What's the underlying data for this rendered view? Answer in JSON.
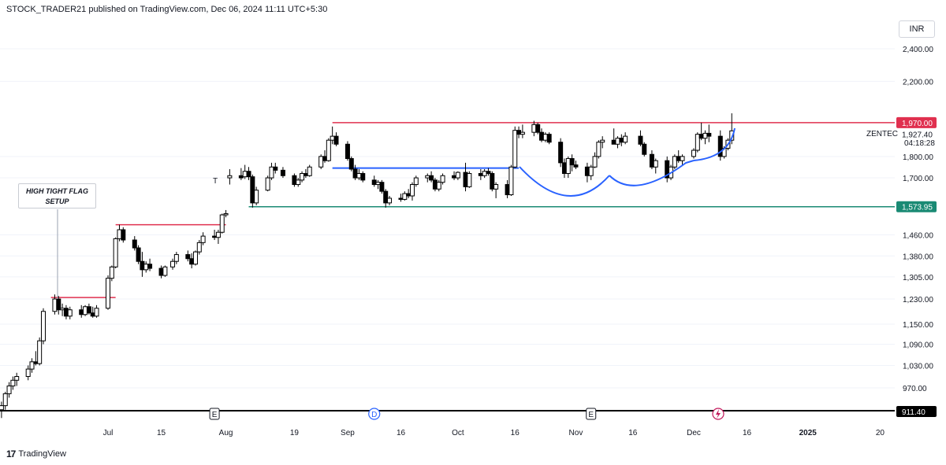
{
  "header": {
    "text": "STOCK_TRADER21 published on TradingView.com, Dec 06, 2024 11:11 UTC+5:30"
  },
  "footer": {
    "logo_text": "TradingView"
  },
  "currency": "INR",
  "annotation": {
    "line1": "HIGH TIGHT FLAG",
    "line2": "SETUP"
  },
  "symbol": "ZENTEC",
  "countdown": "04:18:28",
  "colors": {
    "up": "#ffffff",
    "down": "#000000",
    "red_line": "#e0304f",
    "green_line": "#1a8a74",
    "blue": "#2962ff"
  },
  "chart_data": {
    "type": "candlestick",
    "y_scale": "log",
    "y_ticks": [
      "2,400.00",
      "2,200.00",
      "1,800.00",
      "1,700.00",
      "1,460.00",
      "1,380.00",
      "1,305.00",
      "1,230.00",
      "1,150.00",
      "1,090.00",
      "1,030.00",
      "970.00"
    ],
    "y_tick_values": [
      2400,
      2200,
      1800,
      1700,
      1460,
      1380,
      1305,
      1230,
      1150,
      1090,
      1030,
      970
    ],
    "x_ticks": [
      "Jul",
      "15",
      "Aug",
      "19",
      "Sep",
      "16",
      "Oct",
      "16",
      "Nov",
      "16",
      "Dec",
      "16",
      "2025",
      "20"
    ],
    "price_labels": [
      {
        "name": "resistance",
        "text": "1,970.00",
        "value": 1970
      },
      {
        "name": "last",
        "text": "1,927.40",
        "value": 1927.4
      },
      {
        "name": "support",
        "text": "1,573.95",
        "value": 1573.95
      },
      {
        "name": "low",
        "text": "911.40",
        "value": 911.4
      }
    ],
    "event_markers": [
      "E",
      "D",
      "E"
    ],
    "horizontal_lines": [
      {
        "color": "red",
        "price": 1970,
        "from": "Sep 2",
        "to": "Dec 31"
      },
      {
        "color": "red",
        "price": 1500,
        "from": "Jul 1",
        "to": "Jul 31"
      },
      {
        "color": "red",
        "price": 1235,
        "from": "Jun 21",
        "to": "Jul 2"
      },
      {
        "color": "green",
        "price": 1573.95,
        "from": "Aug 7",
        "to": "Dec 31"
      },
      {
        "color": "blue",
        "price": 1745,
        "from": "Sep 2",
        "to": "Oct 16"
      }
    ],
    "candles": [
      {
        "d": "2024-06-03",
        "o": 915,
        "h": 935,
        "l": 895,
        "c": 925
      },
      {
        "d": "2024-06-04",
        "o": 925,
        "h": 960,
        "l": 915,
        "c": 955
      },
      {
        "d": "2024-06-05",
        "o": 955,
        "h": 985,
        "l": 945,
        "c": 975
      },
      {
        "d": "2024-06-06",
        "o": 975,
        "h": 1000,
        "l": 965,
        "c": 990
      },
      {
        "d": "2024-06-07",
        "o": 990,
        "h": 1010,
        "l": 975,
        "c": 1000
      },
      {
        "d": "2024-06-10",
        "o": 1000,
        "h": 1030,
        "l": 990,
        "c": 1020
      },
      {
        "d": "2024-06-11",
        "o": 1020,
        "h": 1050,
        "l": 1010,
        "c": 1040
      },
      {
        "d": "2024-06-12",
        "o": 1040,
        "h": 1070,
        "l": 1030,
        "c": 1035
      },
      {
        "d": "2024-06-13",
        "o": 1035,
        "h": 1110,
        "l": 1030,
        "c": 1100
      },
      {
        "d": "2024-06-14",
        "o": 1100,
        "h": 1200,
        "l": 1090,
        "c": 1190
      },
      {
        "d": "2024-06-17",
        "o": 1190,
        "h": 1245,
        "l": 1180,
        "c": 1230
      },
      {
        "d": "2024-06-18",
        "o": 1230,
        "h": 1240,
        "l": 1180,
        "c": 1195
      },
      {
        "d": "2024-06-19",
        "o": 1195,
        "h": 1215,
        "l": 1175,
        "c": 1200
      },
      {
        "d": "2024-06-20",
        "o": 1200,
        "h": 1210,
        "l": 1165,
        "c": 1175
      },
      {
        "d": "2024-06-21",
        "o": 1175,
        "h": 1205,
        "l": 1165,
        "c": 1195
      },
      {
        "d": "2024-06-24",
        "o": 1195,
        "h": 1210,
        "l": 1170,
        "c": 1180
      },
      {
        "d": "2024-06-25",
        "o": 1180,
        "h": 1210,
        "l": 1175,
        "c": 1205
      },
      {
        "d": "2024-06-26",
        "o": 1205,
        "h": 1215,
        "l": 1180,
        "c": 1185
      },
      {
        "d": "2024-06-27",
        "o": 1185,
        "h": 1205,
        "l": 1170,
        "c": 1175
      },
      {
        "d": "2024-06-28",
        "o": 1175,
        "h": 1210,
        "l": 1170,
        "c": 1200
      },
      {
        "d": "2024-07-01",
        "o": 1200,
        "h": 1310,
        "l": 1195,
        "c": 1300
      },
      {
        "d": "2024-07-02",
        "o": 1300,
        "h": 1345,
        "l": 1290,
        "c": 1340
      },
      {
        "d": "2024-07-03",
        "o": 1340,
        "h": 1450,
        "l": 1335,
        "c": 1445
      },
      {
        "d": "2024-07-04",
        "o": 1445,
        "h": 1500,
        "l": 1435,
        "c": 1480
      },
      {
        "d": "2024-07-05",
        "o": 1480,
        "h": 1490,
        "l": 1430,
        "c": 1440
      },
      {
        "d": "2024-07-08",
        "o": 1440,
        "h": 1455,
        "l": 1400,
        "c": 1410
      },
      {
        "d": "2024-07-09",
        "o": 1410,
        "h": 1420,
        "l": 1350,
        "c": 1360
      },
      {
        "d": "2024-07-10",
        "o": 1360,
        "h": 1395,
        "l": 1305,
        "c": 1330
      },
      {
        "d": "2024-07-11",
        "o": 1330,
        "h": 1360,
        "l": 1320,
        "c": 1350
      },
      {
        "d": "2024-07-12",
        "o": 1350,
        "h": 1370,
        "l": 1325,
        "c": 1335
      },
      {
        "d": "2024-07-15",
        "o": 1335,
        "h": 1345,
        "l": 1300,
        "c": 1310
      },
      {
        "d": "2024-07-16",
        "o": 1310,
        "h": 1345,
        "l": 1305,
        "c": 1340
      },
      {
        "d": "2024-07-18",
        "o": 1340,
        "h": 1370,
        "l": 1330,
        "c": 1360
      },
      {
        "d": "2024-07-19",
        "o": 1360,
        "h": 1395,
        "l": 1350,
        "c": 1385
      },
      {
        "d": "2024-07-22",
        "o": 1385,
        "h": 1400,
        "l": 1360,
        "c": 1370
      },
      {
        "d": "2024-07-23",
        "o": 1370,
        "h": 1390,
        "l": 1335,
        "c": 1350
      },
      {
        "d": "2024-07-24",
        "o": 1350,
        "h": 1400,
        "l": 1345,
        "c": 1395
      },
      {
        "d": "2024-07-25",
        "o": 1395,
        "h": 1440,
        "l": 1385,
        "c": 1430
      },
      {
        "d": "2024-07-26",
        "o": 1430,
        "h": 1470,
        "l": 1420,
        "c": 1455
      },
      {
        "d": "2024-07-29",
        "o": 1455,
        "h": 1480,
        "l": 1440,
        "c": 1450
      },
      {
        "d": "2024-07-30",
        "o": 1450,
        "h": 1480,
        "l": 1425,
        "c": 1470
      },
      {
        "d": "2024-07-31",
        "o": 1470,
        "h": 1545,
        "l": 1465,
        "c": 1540
      },
      {
        "d": "2024-08-01",
        "o": 1540,
        "h": 1560,
        "l": 1530,
        "c": 1545
      },
      {
        "d": "2024-08-02",
        "o": 1700,
        "h": 1740,
        "l": 1670,
        "c": 1710
      },
      {
        "d": "2024-08-05",
        "o": 1710,
        "h": 1745,
        "l": 1690,
        "c": 1700
      },
      {
        "d": "2024-08-06",
        "o": 1705,
        "h": 1760,
        "l": 1695,
        "c": 1730
      },
      {
        "d": "2024-08-07",
        "o": 1730,
        "h": 1750,
        "l": 1690,
        "c": 1705
      },
      {
        "d": "2024-08-08",
        "o": 1705,
        "h": 1715,
        "l": 1570,
        "c": 1590
      },
      {
        "d": "2024-08-09",
        "o": 1590,
        "h": 1660,
        "l": 1580,
        "c": 1645
      },
      {
        "d": "2024-08-12",
        "o": 1645,
        "h": 1710,
        "l": 1640,
        "c": 1700
      },
      {
        "d": "2024-08-13",
        "o": 1700,
        "h": 1770,
        "l": 1690,
        "c": 1750
      },
      {
        "d": "2024-08-14",
        "o": 1750,
        "h": 1770,
        "l": 1720,
        "c": 1735
      },
      {
        "d": "2024-08-16",
        "o": 1735,
        "h": 1750,
        "l": 1700,
        "c": 1710
      },
      {
        "d": "2024-08-19",
        "o": 1710,
        "h": 1720,
        "l": 1660,
        "c": 1670
      },
      {
        "d": "2024-08-20",
        "o": 1670,
        "h": 1700,
        "l": 1660,
        "c": 1690
      },
      {
        "d": "2024-08-21",
        "o": 1690,
        "h": 1730,
        "l": 1680,
        "c": 1720
      },
      {
        "d": "2024-08-22",
        "o": 1720,
        "h": 1740,
        "l": 1700,
        "c": 1710
      },
      {
        "d": "2024-08-23",
        "o": 1710,
        "h": 1760,
        "l": 1705,
        "c": 1750
      },
      {
        "d": "2024-08-26",
        "o": 1750,
        "h": 1810,
        "l": 1740,
        "c": 1800
      },
      {
        "d": "2024-08-27",
        "o": 1800,
        "h": 1830,
        "l": 1770,
        "c": 1780
      },
      {
        "d": "2024-08-28",
        "o": 1780,
        "h": 1890,
        "l": 1775,
        "c": 1880
      },
      {
        "d": "2024-08-29",
        "o": 1880,
        "h": 1950,
        "l": 1860,
        "c": 1900
      },
      {
        "d": "2024-08-30",
        "o": 1900,
        "h": 1920,
        "l": 1850,
        "c": 1860
      },
      {
        "d": "2024-09-02",
        "o": 1860,
        "h": 1875,
        "l": 1780,
        "c": 1790
      },
      {
        "d": "2024-09-03",
        "o": 1790,
        "h": 1800,
        "l": 1730,
        "c": 1740
      },
      {
        "d": "2024-09-04",
        "o": 1740,
        "h": 1760,
        "l": 1690,
        "c": 1700
      },
      {
        "d": "2024-09-05",
        "o": 1700,
        "h": 1740,
        "l": 1690,
        "c": 1720
      },
      {
        "d": "2024-09-06",
        "o": 1720,
        "h": 1730,
        "l": 1680,
        "c": 1690
      },
      {
        "d": "2024-09-09",
        "o": 1690,
        "h": 1710,
        "l": 1660,
        "c": 1670
      },
      {
        "d": "2024-09-10",
        "o": 1670,
        "h": 1690,
        "l": 1650,
        "c": 1680
      },
      {
        "d": "2024-09-11",
        "o": 1680,
        "h": 1690,
        "l": 1630,
        "c": 1640
      },
      {
        "d": "2024-09-12",
        "o": 1640,
        "h": 1650,
        "l": 1570,
        "c": 1590
      },
      {
        "d": "2024-09-13",
        "o": 1590,
        "h": 1620,
        "l": 1580,
        "c": 1610
      },
      {
        "d": "2024-09-16",
        "o": 1610,
        "h": 1630,
        "l": 1595,
        "c": 1605
      },
      {
        "d": "2024-09-17",
        "o": 1605,
        "h": 1640,
        "l": 1600,
        "c": 1630
      },
      {
        "d": "2024-09-18",
        "o": 1630,
        "h": 1650,
        "l": 1610,
        "c": 1620
      },
      {
        "d": "2024-09-19",
        "o": 1620,
        "h": 1680,
        "l": 1600,
        "c": 1670
      },
      {
        "d": "2024-09-20",
        "o": 1670,
        "h": 1710,
        "l": 1660,
        "c": 1700
      },
      {
        "d": "2024-09-23",
        "o": 1700,
        "h": 1720,
        "l": 1680,
        "c": 1710
      },
      {
        "d": "2024-09-24",
        "o": 1710,
        "h": 1730,
        "l": 1680,
        "c": 1690
      },
      {
        "d": "2024-09-25",
        "o": 1690,
        "h": 1700,
        "l": 1640,
        "c": 1650
      },
      {
        "d": "2024-09-26",
        "o": 1650,
        "h": 1690,
        "l": 1640,
        "c": 1680
      },
      {
        "d": "2024-09-27",
        "o": 1680,
        "h": 1720,
        "l": 1670,
        "c": 1710
      },
      {
        "d": "2024-09-30",
        "o": 1710,
        "h": 1730,
        "l": 1690,
        "c": 1700
      },
      {
        "d": "2024-10-01",
        "o": 1700,
        "h": 1730,
        "l": 1690,
        "c": 1725
      },
      {
        "d": "2024-10-03",
        "o": 1725,
        "h": 1770,
        "l": 1640,
        "c": 1660
      },
      {
        "d": "2024-10-04",
        "o": 1660,
        "h": 1730,
        "l": 1655,
        "c": 1720
      },
      {
        "d": "2024-10-07",
        "o": 1720,
        "h": 1740,
        "l": 1690,
        "c": 1710
      },
      {
        "d": "2024-10-08",
        "o": 1710,
        "h": 1740,
        "l": 1700,
        "c": 1730
      },
      {
        "d": "2024-10-09",
        "o": 1730,
        "h": 1745,
        "l": 1710,
        "c": 1720
      },
      {
        "d": "2024-10-10",
        "o": 1720,
        "h": 1730,
        "l": 1640,
        "c": 1650
      },
      {
        "d": "2024-10-11",
        "o": 1650,
        "h": 1680,
        "l": 1610,
        "c": 1670
      },
      {
        "d": "2024-10-14",
        "o": 1670,
        "h": 1690,
        "l": 1610,
        "c": 1625
      },
      {
        "d": "2024-10-15",
        "o": 1625,
        "h": 1760,
        "l": 1620,
        "c": 1750
      },
      {
        "d": "2024-10-16",
        "o": 1750,
        "h": 1950,
        "l": 1745,
        "c": 1930
      },
      {
        "d": "2024-10-17",
        "o": 1930,
        "h": 1950,
        "l": 1890,
        "c": 1910
      },
      {
        "d": "2024-10-18",
        "o": 1910,
        "h": 1960,
        "l": 1890,
        "c": 1920
      },
      {
        "d": "2024-10-21",
        "o": 1920,
        "h": 1980,
        "l": 1900,
        "c": 1960
      },
      {
        "d": "2024-10-22",
        "o": 1960,
        "h": 1970,
        "l": 1910,
        "c": 1920
      },
      {
        "d": "2024-10-23",
        "o": 1920,
        "h": 1940,
        "l": 1870,
        "c": 1880
      },
      {
        "d": "2024-10-24",
        "o": 1880,
        "h": 1920,
        "l": 1870,
        "c": 1910
      },
      {
        "d": "2024-10-25",
        "o": 1910,
        "h": 1920,
        "l": 1860,
        "c": 1870
      },
      {
        "d": "2024-10-28",
        "o": 1870,
        "h": 1890,
        "l": 1750,
        "c": 1770
      },
      {
        "d": "2024-10-29",
        "o": 1770,
        "h": 1790,
        "l": 1700,
        "c": 1720
      },
      {
        "d": "2024-10-30",
        "o": 1720,
        "h": 1800,
        "l": 1700,
        "c": 1790
      },
      {
        "d": "2024-10-31",
        "o": 1790,
        "h": 1810,
        "l": 1730,
        "c": 1760
      },
      {
        "d": "2024-11-01",
        "o": 1760,
        "h": 1780,
        "l": 1740,
        "c": 1750
      },
      {
        "d": "2024-11-04",
        "o": 1750,
        "h": 1770,
        "l": 1680,
        "c": 1710
      },
      {
        "d": "2024-11-05",
        "o": 1710,
        "h": 1760,
        "l": 1690,
        "c": 1750
      },
      {
        "d": "2024-11-06",
        "o": 1750,
        "h": 1820,
        "l": 1745,
        "c": 1800
      },
      {
        "d": "2024-11-07",
        "o": 1800,
        "h": 1880,
        "l": 1790,
        "c": 1870
      },
      {
        "d": "2024-11-08",
        "o": 1870,
        "h": 1900,
        "l": 1840,
        "c": 1880
      },
      {
        "d": "2024-11-11",
        "o": 1880,
        "h": 1940,
        "l": 1860,
        "c": 1860
      },
      {
        "d": "2024-11-12",
        "o": 1860,
        "h": 1900,
        "l": 1840,
        "c": 1890
      },
      {
        "d": "2024-11-13",
        "o": 1890,
        "h": 1910,
        "l": 1850,
        "c": 1870
      },
      {
        "d": "2024-11-14",
        "o": 1870,
        "h": 1920,
        "l": 1860,
        "c": 1900
      },
      {
        "d": "2024-11-18",
        "o": 1900,
        "h": 1930,
        "l": 1850,
        "c": 1860
      },
      {
        "d": "2024-11-19",
        "o": 1860,
        "h": 1870,
        "l": 1800,
        "c": 1810
      },
      {
        "d": "2024-11-21",
        "o": 1810,
        "h": 1830,
        "l": 1740,
        "c": 1750
      },
      {
        "d": "2024-11-22",
        "o": 1750,
        "h": 1790,
        "l": 1720,
        "c": 1780
      },
      {
        "d": "2024-11-25",
        "o": 1780,
        "h": 1800,
        "l": 1680,
        "c": 1700
      },
      {
        "d": "2024-11-26",
        "o": 1700,
        "h": 1760,
        "l": 1690,
        "c": 1750
      },
      {
        "d": "2024-11-27",
        "o": 1750,
        "h": 1810,
        "l": 1740,
        "c": 1800
      },
      {
        "d": "2024-11-28",
        "o": 1800,
        "h": 1830,
        "l": 1770,
        "c": 1780
      },
      {
        "d": "2024-11-29",
        "o": 1780,
        "h": 1810,
        "l": 1760,
        "c": 1800
      },
      {
        "d": "2024-12-02",
        "o": 1800,
        "h": 1840,
        "l": 1790,
        "c": 1830
      },
      {
        "d": "2024-12-03",
        "o": 1830,
        "h": 1920,
        "l": 1820,
        "c": 1910
      },
      {
        "d": "2024-12-04",
        "o": 1910,
        "h": 1970,
        "l": 1880,
        "c": 1890
      },
      {
        "d": "2024-12-05",
        "o": 1890,
        "h": 1930,
        "l": 1860,
        "c": 1915
      },
      {
        "d": "2024-12-06",
        "o": 1915,
        "h": 1960,
        "l": 1870,
        "c": 1900
      },
      {
        "d": "2024-12-09",
        "o": 1900,
        "h": 1930,
        "l": 1780,
        "c": 1800
      },
      {
        "d": "2024-12-10",
        "o": 1800,
        "h": 1850,
        "l": 1790,
        "c": 1840
      },
      {
        "d": "2024-12-11",
        "o": 1840,
        "h": 1890,
        "l": 1830,
        "c": 1880
      },
      {
        "d": "2024-12-12",
        "o": 1880,
        "h": 2020,
        "l": 1860,
        "c": 1927.4
      }
    ]
  }
}
